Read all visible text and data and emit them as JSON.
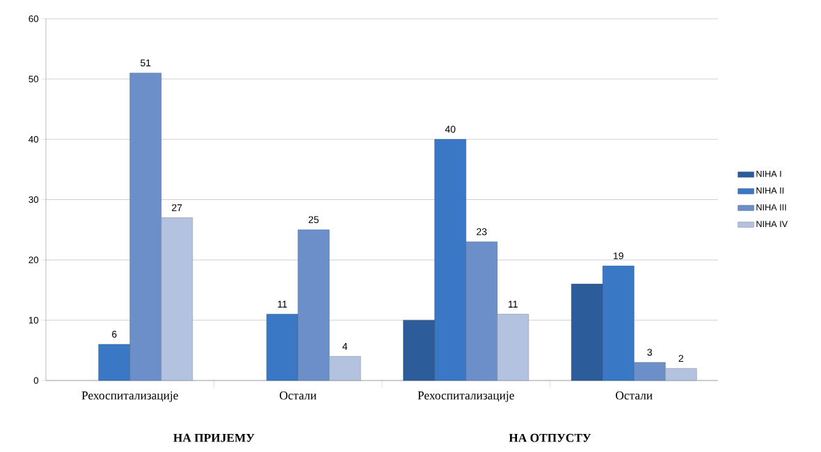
{
  "chart_data": {
    "type": "bar",
    "categories": [
      "Рехоспитализације",
      "Остали",
      "Рехоспитализације",
      "Остали"
    ],
    "series": [
      {
        "name": "NIHA I",
        "color": "#2c5d9a",
        "values": [
          null,
          null,
          10,
          16
        ],
        "value_labels": [
          null,
          null,
          null,
          null
        ]
      },
      {
        "name": "NIHA II",
        "color": "#3a78c6",
        "values": [
          6,
          11,
          40,
          19
        ],
        "value_labels": [
          "6",
          "11",
          "40",
          "19"
        ]
      },
      {
        "name": "NIHA III",
        "color": "#6c8fca",
        "values": [
          51,
          25,
          23,
          3
        ],
        "value_labels": [
          "51",
          "25",
          "23",
          "3"
        ]
      },
      {
        "name": "NIHA IV",
        "color": "#b2c2df",
        "values": [
          27,
          4,
          11,
          2
        ],
        "value_labels": [
          "27",
          "4",
          "11",
          "2"
        ]
      }
    ],
    "annotations": [
      "НА ПРИЈЕМУ",
      "НА ОТПУСТУ"
    ],
    "ylim": [
      0,
      60
    ],
    "yticks": [
      0,
      10,
      20,
      30,
      40,
      50,
      60
    ],
    "grid": "y",
    "legend": "right"
  }
}
